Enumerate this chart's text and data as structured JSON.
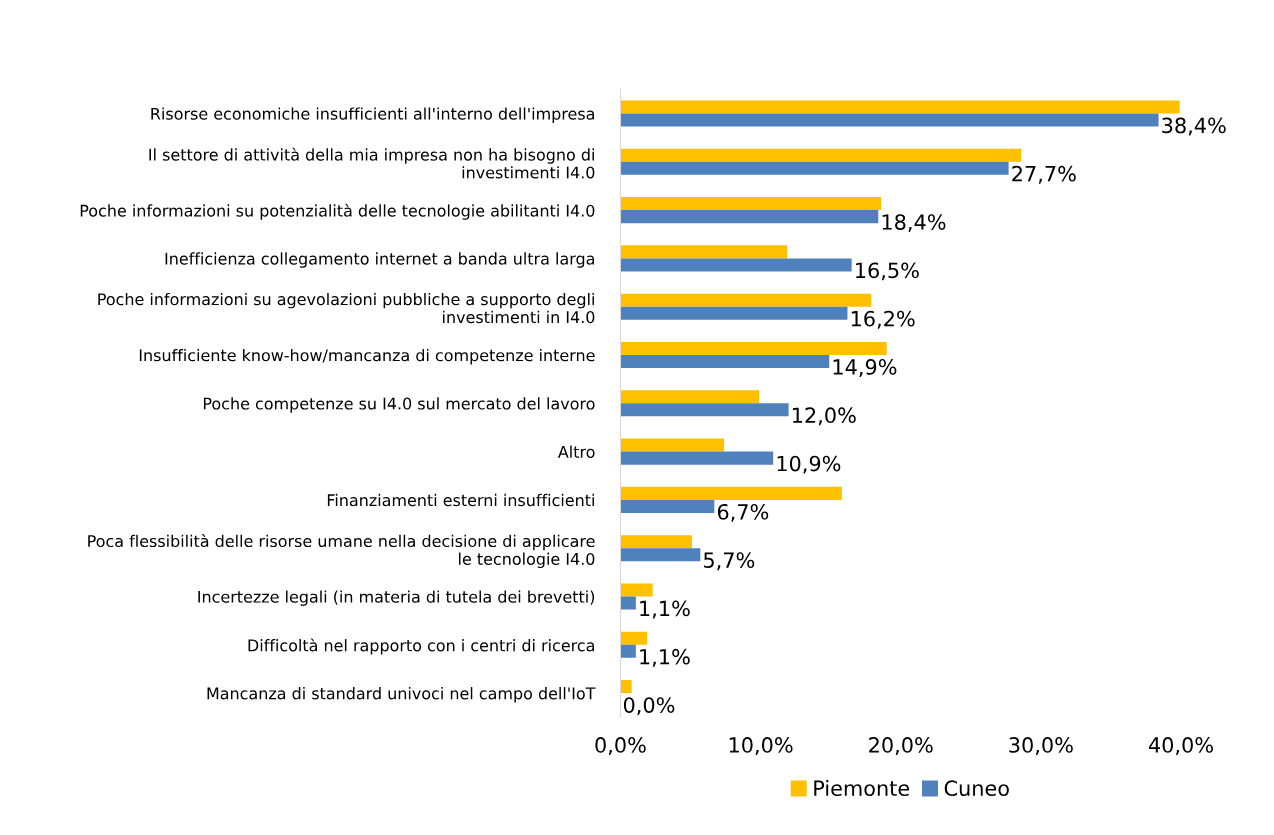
{
  "chart_data": {
    "type": "bar",
    "orientation": "horizontal",
    "categories": [
      "Risorse economiche insufficienti all'interno dell'impresa",
      "Il settore di attività della mia impresa non ha bisogno di\ninvestimenti I4.0",
      "Poche informazioni su potenzialità delle tecnologie abilitanti I4.0",
      "Inefficienza collegamento internet a banda ultra larga",
      "Poche informazioni su agevolazioni pubbliche a supporto degli\ninvestimenti in I4.0",
      "Insufficiente know-how/mancanza di competenze interne",
      "Poche competenze su I4.0 sul mercato del lavoro",
      "Altro",
      "Finanziamenti esterni insufficienti",
      "Poca flessibilità delle risorse umane nella decisione di applicare\nle tecnologie I4.0",
      "Incertezze legali (in materia di tutela dei brevetti)",
      "Difficoltà nel rapporto con i centri di ricerca",
      "Mancanza di standard univoci nel campo dell'IoT"
    ],
    "series": [
      {
        "name": "Piemonte",
        "color": "#ffc000",
        "values": [
          39.9,
          28.6,
          18.6,
          11.9,
          17.9,
          19.0,
          9.9,
          7.4,
          15.8,
          5.1,
          2.3,
          1.9,
          0.8
        ]
      },
      {
        "name": "Cuneo",
        "color": "#4f81bd",
        "values": [
          38.4,
          27.7,
          18.4,
          16.5,
          16.2,
          14.9,
          12.0,
          10.9,
          6.7,
          5.7,
          1.1,
          1.1,
          0.0
        ],
        "value_labels": [
          "38,4%",
          "27,7%",
          "18,4%",
          "16,5%",
          "16,2%",
          "14,9%",
          "12,0%",
          "10,9%",
          "6,7%",
          "5,7%",
          "1,1%",
          "1,1%",
          "0,0%"
        ]
      }
    ],
    "xlim": [
      0,
      40
    ],
    "xticks": [
      {
        "value": 0,
        "label": "0,0%"
      },
      {
        "value": 10,
        "label": "10,0%"
      },
      {
        "value": 20,
        "label": "20,0%"
      },
      {
        "value": 30,
        "label": "30,0%"
      },
      {
        "value": 40,
        "label": "40,0%"
      }
    ],
    "grid": false,
    "legend": "bottom"
  }
}
